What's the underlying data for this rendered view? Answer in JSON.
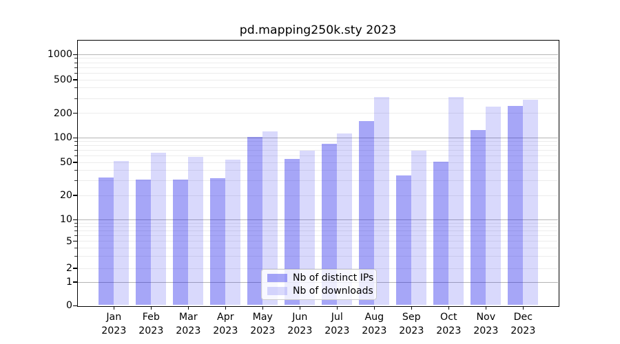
{
  "chart_data": {
    "type": "bar",
    "title": "pd.mapping250k.sty 2023",
    "x_labels": [
      {
        "month": "Jan",
        "year": "2023"
      },
      {
        "month": "Feb",
        "year": "2023"
      },
      {
        "month": "Mar",
        "year": "2023"
      },
      {
        "month": "Apr",
        "year": "2023"
      },
      {
        "month": "May",
        "year": "2023"
      },
      {
        "month": "Jun",
        "year": "2023"
      },
      {
        "month": "Jul",
        "year": "2023"
      },
      {
        "month": "Aug",
        "year": "2023"
      },
      {
        "month": "Sep",
        "year": "2023"
      },
      {
        "month": "Oct",
        "year": "2023"
      },
      {
        "month": "Nov",
        "year": "2023"
      },
      {
        "month": "Dec",
        "year": "2023"
      }
    ],
    "series": [
      {
        "name": "Nb of distinct IPs",
        "color": "rgba(20,20,235,0.38)",
        "values": [
          33,
          31,
          31,
          32,
          102,
          55,
          85,
          160,
          35,
          51,
          125,
          245
        ]
      },
      {
        "name": "Nb of downloads",
        "color": "rgba(20,20,235,0.16)",
        "values": [
          52,
          65,
          58,
          54,
          120,
          69,
          112,
          310,
          70,
          310,
          240,
          290
        ]
      }
    ],
    "y_ticks": [
      0,
      1,
      2,
      5,
      10,
      20,
      50,
      100,
      200,
      500,
      1000
    ],
    "yscale": "symlog",
    "ylim": [
      0,
      1400
    ],
    "grid": "both",
    "legend_position": "lower center"
  },
  "colors": {
    "background": "#ffffff",
    "axis": "#000000",
    "text": "#000000",
    "grid_major": "#b4b4b4",
    "grid_minor": "#ececec",
    "legend_background": "rgba(255,255,255,0.8)",
    "legend_border": "#cccccc"
  }
}
